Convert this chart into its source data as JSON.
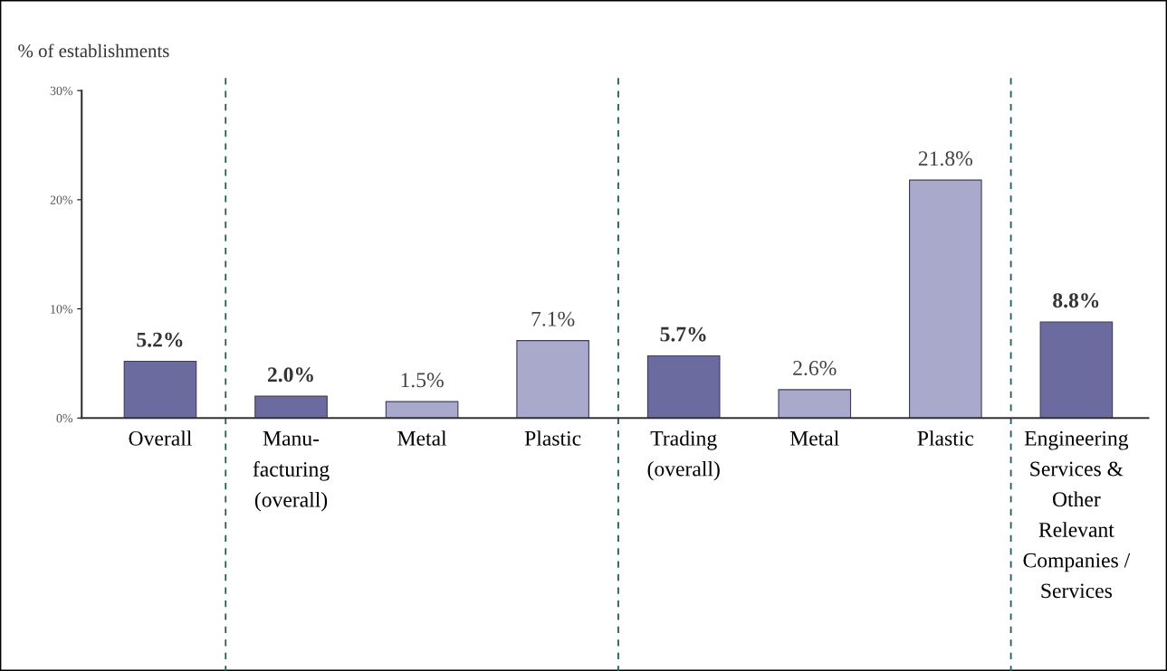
{
  "chart_data": {
    "type": "bar",
    "ylabel": "% of establishments",
    "categories": [
      "Overall",
      "Manu-\nfacturing\n(overall)",
      "Metal",
      "Plastic",
      "Trading\n(overall)",
      "Metal",
      "Plastic",
      "Engineering\nServices &\nOther\nRelevant\nCompanies /\nServices"
    ],
    "values": [
      5.2,
      2.0,
      1.5,
      7.1,
      5.7,
      2.6,
      21.8,
      8.8
    ],
    "colors": [
      "#6b6b9f",
      "#6b6b9f",
      "#a9a9cc",
      "#a9a9cc",
      "#6b6b9f",
      "#a9a9cc",
      "#a9a9cc",
      "#6b6b9f"
    ],
    "value_labels": [
      "5.2%",
      "2.0%",
      "1.5%",
      "7.1%",
      "5.7%",
      "2.6%",
      "21.8%",
      "8.8%"
    ],
    "ylim": [
      0,
      30
    ],
    "yticks": [
      {
        "value": 0,
        "label": "0%"
      },
      {
        "value": 10,
        "label": "10%"
      },
      {
        "value": 20,
        "label": "20%"
      },
      {
        "value": 30,
        "label": "30%"
      }
    ],
    "grid": false,
    "legend": false
  }
}
